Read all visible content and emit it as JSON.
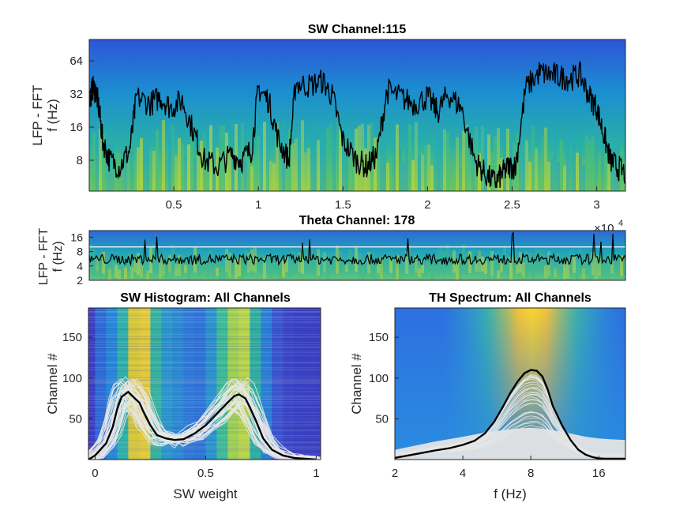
{
  "colors": {
    "spectrogram_low": "#3b3fc6",
    "spectrogram_mid": "#1fa3c0",
    "spectrogram_high": "#f5dd2b",
    "trace": "#000000",
    "overlay": "#e6e6e6",
    "threshold_line": "#ffffff"
  },
  "chart_data": [
    {
      "type": "heatmap",
      "id": "sw",
      "title": "SW Channel:115",
      "ylabel_line1": "LFP - FFT",
      "ylabel_line2": "f (Hz)",
      "xticks": [
        "0.5",
        "1",
        "1.5",
        "2",
        "2.5",
        "3"
      ],
      "xtick_values": [
        0.5,
        1,
        1.5,
        2,
        2.5,
        3
      ],
      "xlim": [
        0,
        3.17
      ],
      "x_exponent": "×10",
      "x_exponent_power": "4",
      "yscale": "log",
      "yticks": [
        "8",
        "16",
        "32",
        "64"
      ],
      "ytick_values": [
        8,
        16,
        32,
        64
      ],
      "ylim": [
        4.2,
        100
      ],
      "trace_segments": [
        [
          0,
          28
        ],
        [
          0.02,
          36
        ],
        [
          0.04,
          34
        ],
        [
          0.06,
          22
        ],
        [
          0.08,
          12
        ],
        [
          0.12,
          8
        ],
        [
          0.18,
          7
        ],
        [
          0.24,
          10
        ],
        [
          0.28,
          30
        ],
        [
          0.36,
          26
        ],
        [
          0.42,
          30
        ],
        [
          0.48,
          24
        ],
        [
          0.55,
          28
        ],
        [
          0.62,
          14
        ],
        [
          0.68,
          8
        ],
        [
          0.76,
          7
        ],
        [
          0.84,
          9
        ],
        [
          0.9,
          8
        ],
        [
          0.96,
          10
        ],
        [
          1.0,
          36
        ],
        [
          1.06,
          28
        ],
        [
          1.12,
          12
        ],
        [
          1.18,
          8
        ],
        [
          1.22,
          40
        ],
        [
          1.3,
          38
        ],
        [
          1.38,
          42
        ],
        [
          1.44,
          30
        ],
        [
          1.5,
          12
        ],
        [
          1.58,
          8
        ],
        [
          1.64,
          7
        ],
        [
          1.7,
          9
        ],
        [
          1.76,
          34
        ],
        [
          1.84,
          30
        ],
        [
          1.92,
          26
        ],
        [
          2.0,
          30
        ],
        [
          2.06,
          22
        ],
        [
          2.12,
          32
        ],
        [
          2.2,
          24
        ],
        [
          2.28,
          8
        ],
        [
          2.34,
          6
        ],
        [
          2.4,
          5
        ],
        [
          2.44,
          6
        ],
        [
          2.48,
          7
        ],
        [
          2.52,
          7
        ],
        [
          2.58,
          36
        ],
        [
          2.66,
          50
        ],
        [
          2.72,
          48
        ],
        [
          2.78,
          46
        ],
        [
          2.84,
          44
        ],
        [
          2.9,
          48
        ],
        [
          2.96,
          30
        ],
        [
          3.0,
          24
        ],
        [
          3.04,
          14
        ],
        [
          3.08,
          8
        ],
        [
          3.12,
          7
        ],
        [
          3.17,
          6
        ]
      ]
    },
    {
      "type": "heatmap",
      "id": "theta",
      "title": "Theta Channel: 178",
      "ylabel_line1": "LFP - FFT",
      "ylabel_line2": "f (Hz)",
      "yscale": "log",
      "yticks": [
        "2",
        "4",
        "8",
        "16"
      ],
      "ytick_values": [
        2,
        4,
        8,
        16
      ],
      "ylim": [
        2,
        22
      ],
      "xlim": [
        0,
        3.17
      ],
      "threshold_hz": 10,
      "trace_mean_hz": 5.5
    },
    {
      "type": "heatmap",
      "id": "swhist",
      "title": "SW Histogram: All Channels",
      "xlabel": "SW weight",
      "ylabel": "Channel #",
      "xticks": [
        "0",
        "0.5",
        "1"
      ],
      "xtick_values": [
        0,
        0.5,
        1
      ],
      "xlim": [
        -0.03,
        1.02
      ],
      "yticks": [
        "50",
        "100",
        "150"
      ],
      "ytick_values": [
        50,
        100,
        150
      ],
      "ylim": [
        0,
        186
      ],
      "mean_curve": {
        "x": [
          -0.03,
          0.0,
          0.05,
          0.08,
          0.1,
          0.12,
          0.15,
          0.18,
          0.2,
          0.22,
          0.25,
          0.28,
          0.32,
          0.36,
          0.4,
          0.45,
          0.5,
          0.55,
          0.6,
          0.63,
          0.65,
          0.68,
          0.7,
          0.73,
          0.76,
          0.8,
          0.85,
          0.9,
          0.95,
          1.0
        ],
        "y": [
          0,
          5,
          20,
          40,
          62,
          77,
          83,
          75,
          70,
          58,
          42,
          30,
          26,
          24,
          25,
          32,
          42,
          56,
          70,
          78,
          80,
          75,
          64,
          46,
          26,
          12,
          5,
          2,
          1,
          0
        ]
      }
    },
    {
      "type": "heatmap",
      "id": "thspec",
      "title": "TH Spectrum: All Channels",
      "xlabel": "f (Hz)",
      "ylabel": "Channel #",
      "xscale": "log",
      "xticks": [
        "2",
        "4",
        "8",
        "16"
      ],
      "xtick_values": [
        2,
        4,
        8,
        16
      ],
      "xlim": [
        2,
        21
      ],
      "yticks": [
        "50",
        "100",
        "150"
      ],
      "ytick_values": [
        50,
        100,
        150
      ],
      "ylim": [
        0,
        186
      ],
      "mean_curve": {
        "x": [
          2,
          2.5,
          3,
          3.5,
          4,
          4.5,
          5,
          5.5,
          6,
          6.5,
          7,
          7.5,
          8,
          8.5,
          9,
          9.5,
          10,
          11,
          12,
          13,
          14,
          15,
          16,
          17,
          18,
          19,
          20,
          21
        ],
        "y": [
          2,
          7,
          11,
          14,
          18,
          23,
          32,
          46,
          64,
          82,
          96,
          106,
          110,
          109,
          102,
          86,
          66,
          42,
          24,
          12,
          6,
          3,
          1.5,
          1,
          1,
          1,
          1,
          1
        ]
      }
    }
  ]
}
